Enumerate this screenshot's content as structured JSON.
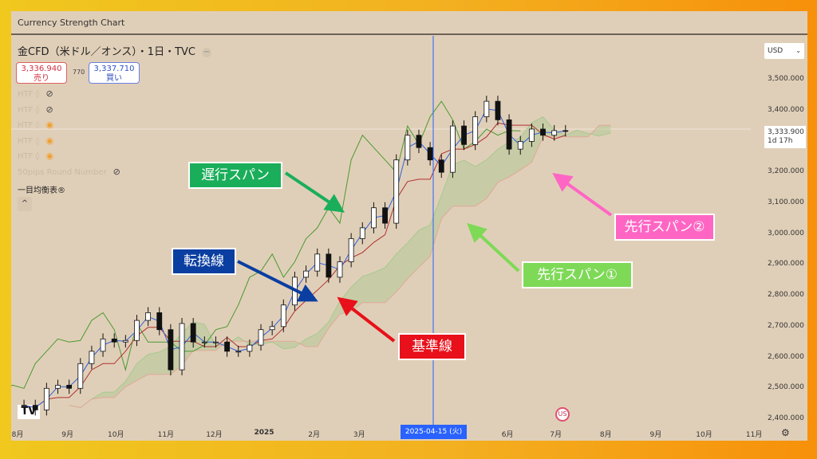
{
  "window": {
    "title": "Currency Strength Chart"
  },
  "symbol": {
    "title": "金CFD（米ドル／オンス）・1日・TVC",
    "toggle": "−"
  },
  "quotes": {
    "sell_price": "3,336.940",
    "sell_label": "売り",
    "spread": "770",
    "buy_price": "3,337.710",
    "buy_label": "買い"
  },
  "indicators": [
    {
      "label": "HTF ◊",
      "icon": "eye-off-icon",
      "eye": "⊘"
    },
    {
      "label": "HTF ◊",
      "icon": "eye-off-icon",
      "eye": "⊘"
    },
    {
      "label": "HTF ◊",
      "icon": "eye-icon",
      "eye": "◉"
    },
    {
      "label": "HTF ◊",
      "icon": "eye-icon",
      "eye": "◉"
    },
    {
      "label": "HTF ◊",
      "icon": "eye-icon",
      "eye": "◉"
    },
    {
      "label": "50pips Round Number",
      "icon": "eye-off-icon",
      "eye": "⊘"
    }
  ],
  "ichimoku_label": "一目均衡表®",
  "collapse": "^",
  "currency": {
    "value": "USD",
    "chevron": "⌄"
  },
  "last_price": {
    "value": "3,333.900",
    "countdown": "1d 17h"
  },
  "cursor": {
    "date": "2025-04-15 (火)",
    "color": "#2962ff"
  },
  "tv_logo": "TV",
  "colors": {
    "up": "#ffffff",
    "down": "#111111",
    "tenkan": "#3060e0",
    "kijun": "#b03030",
    "chikou": "#4a9a30",
    "span_a": "#a8c890",
    "span_b": "#e0a898"
  },
  "annotations": [
    {
      "text": "遅行スパン",
      "color": "#1aae5a"
    },
    {
      "text": "転換線",
      "color": "#0a3ea0"
    },
    {
      "text": "基準線",
      "color": "#e8101a"
    },
    {
      "text": "先行スパン①",
      "color": "#7ed957"
    },
    {
      "text": "先行スパン②",
      "color": "#ff66c4"
    }
  ],
  "chart_data": {
    "type": "candlestick",
    "title": "金CFD（米ドル／オンス）・1日・TVC",
    "ylim": [
      2400,
      3500
    ],
    "yticks": [
      "3,500.000",
      "3,400.000",
      "3,200.000",
      "3,100.000",
      "3,000.000",
      "2,900.000",
      "2,800.000",
      "2,700.000",
      "2,600.000",
      "2,500.000",
      "2,400.000"
    ],
    "ytick_values": [
      3500,
      3400,
      3200,
      3100,
      3000,
      2900,
      2800,
      2700,
      2600,
      2500,
      2400
    ],
    "xticks": [
      "8月",
      "9月",
      "10月",
      "11月",
      "12月",
      "2025",
      "2月",
      "3月",
      "6月",
      "7月",
      "8月",
      "9月",
      "10月",
      "11月"
    ],
    "xtick_dates": [
      "2024-08-01",
      "2024-09-01",
      "2024-10-01",
      "2024-11-01",
      "2024-12-01",
      "2025-01-01",
      "2025-02-01",
      "2025-03-01",
      "2025-06-01",
      "2025-07-01",
      "2025-08-01",
      "2025-09-01",
      "2025-10-01",
      "2025-11-01"
    ],
    "start_date": "2024-08-05",
    "interval_days": 7,
    "close": [
      2445,
      2430,
      2500,
      2510,
      2500,
      2580,
      2620,
      2660,
      2650,
      2655,
      2720,
      2745,
      2690,
      2560,
      2710,
      2650,
      2650,
      2650,
      2620,
      2620,
      2640,
      2690,
      2700,
      2770,
      2860,
      2880,
      2935,
      2860,
      2910,
      2985,
      3020,
      3085,
      3035,
      3240,
      3320,
      3280,
      3240,
      3200,
      3350,
      3290,
      3380,
      3430,
      3370,
      3275,
      3300,
      3340,
      3320,
      3335,
      3334
    ],
    "grid": false,
    "indicator": "一目均衡表"
  }
}
